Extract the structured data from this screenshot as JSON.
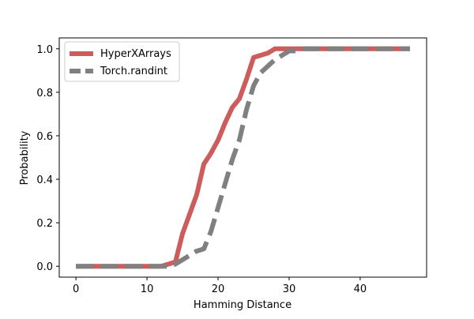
{
  "chart_data": {
    "type": "line",
    "xlabel": "Hamming Distance",
    "ylabel": "Probability",
    "xlim": [
      -2.35,
      49.35
    ],
    "ylim": [
      -0.05,
      1.05
    ],
    "xticks": [
      0,
      10,
      20,
      30,
      40
    ],
    "yticks": [
      0.0,
      0.2,
      0.4,
      0.6,
      0.8,
      1.0
    ],
    "xtick_labels": [
      "0",
      "10",
      "20",
      "30",
      "40"
    ],
    "ytick_labels": [
      "0.0",
      "0.2",
      "0.4",
      "0.6",
      "0.8",
      "1.0"
    ],
    "legend_position": "upper-left",
    "series": [
      {
        "name": "HyperXArrays",
        "color": "#cd5c5c",
        "style": "solid",
        "x": [
          0,
          1,
          2,
          3,
          4,
          5,
          6,
          7,
          8,
          9,
          10,
          11,
          12,
          13,
          14,
          15,
          16,
          17,
          18,
          19,
          20,
          21,
          22,
          23,
          24,
          25,
          26,
          27,
          28,
          29,
          30,
          31,
          32,
          33,
          34,
          35,
          36,
          37,
          38,
          39,
          40,
          41,
          42,
          43,
          44,
          45,
          46,
          47
        ],
        "y": [
          0,
          0,
          0,
          0,
          0,
          0,
          0,
          0,
          0,
          0,
          0,
          0,
          0,
          0.01,
          0.02,
          0.15,
          0.24,
          0.33,
          0.47,
          0.52,
          0.58,
          0.66,
          0.73,
          0.77,
          0.86,
          0.96,
          0.97,
          0.98,
          1,
          1,
          1,
          1,
          1,
          1,
          1,
          1,
          1,
          1,
          1,
          1,
          1,
          1,
          1,
          1,
          1,
          1,
          1,
          1
        ]
      },
      {
        "name": "Torch.randint",
        "color": "#808080",
        "style": "dashed",
        "x": [
          0,
          1,
          2,
          3,
          4,
          5,
          6,
          7,
          8,
          9,
          10,
          11,
          12,
          13,
          14,
          15,
          16,
          17,
          18,
          19,
          20,
          21,
          22,
          23,
          24,
          25,
          26,
          27,
          28,
          29,
          30,
          31,
          32,
          33,
          34,
          35,
          36,
          37,
          38,
          39,
          40,
          41,
          42,
          43,
          44,
          45,
          46,
          47
        ],
        "y": [
          0,
          0,
          0,
          0,
          0,
          0,
          0,
          0,
          0,
          0,
          0,
          0,
          0,
          0,
          0.01,
          0.03,
          0.05,
          0.07,
          0.08,
          0.16,
          0.27,
          0.38,
          0.49,
          0.58,
          0.72,
          0.83,
          0.89,
          0.92,
          0.95,
          0.97,
          0.99,
          0.99,
          1,
          1,
          1,
          1,
          1,
          1,
          1,
          1,
          1,
          1,
          1,
          1,
          1,
          1,
          1,
          1
        ]
      }
    ]
  }
}
